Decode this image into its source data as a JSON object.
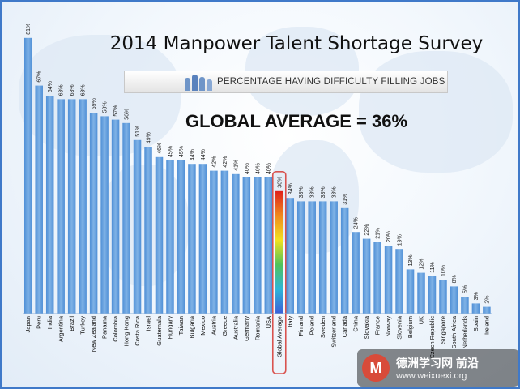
{
  "slide": {
    "title": "2014 Manpower Talent Shortage Survey",
    "subtitle": "PERCENTAGE HAVING DIFFICULTY FILLING JOBS",
    "headline": "GLOBAL AVERAGE = 36%",
    "watermark": {
      "logo": "M",
      "line1": "德洲学习网 前沿",
      "line2": "www.weixuexi.org"
    }
  },
  "colors": {
    "bar": "#7fb2e6",
    "bar_dark": "#4f8fd6",
    "highlight_outline": "#d9534f",
    "border": "#3f79c9"
  },
  "chart_data": {
    "type": "bar",
    "title": "2014 Manpower Talent Shortage Survey",
    "categories": [
      "Japan",
      "Peru",
      "India",
      "Argentina",
      "Brazil",
      "Turkey",
      "New Zealand",
      "Panama",
      "Colombia",
      "Hong Kong",
      "Costa Rica",
      "Israel",
      "Guatemala",
      "Hungary",
      "Taiwan",
      "Bulgaria",
      "Mexico",
      "Austria",
      "Greece",
      "Australia",
      "Germany",
      "Romania",
      "USA",
      "Global Average",
      "Italy",
      "Finland",
      "Poland",
      "Sweden",
      "Switzerland",
      "Canada",
      "China",
      "Slovakia",
      "France",
      "Norway",
      "Slovenia",
      "Belgium",
      "UK",
      "Czech Republic",
      "Singapore",
      "South Africa",
      "Netherlands",
      "Spain",
      "Ireland"
    ],
    "values": [
      81,
      67,
      64,
      63,
      63,
      63,
      59,
      58,
      57,
      56,
      51,
      49,
      46,
      45,
      45,
      44,
      44,
      42,
      42,
      41,
      40,
      40,
      40,
      36,
      34,
      33,
      33,
      33,
      33,
      31,
      24,
      22,
      21,
      20,
      19,
      13,
      12,
      11,
      10,
      8,
      5,
      3,
      2
    ],
    "value_labels": [
      "81%",
      "67%",
      "64%",
      "63%",
      "63%",
      "63%",
      "59%",
      "58%",
      "57%",
      "56%",
      "51%",
      "49%",
      "46%",
      "45%",
      "45%",
      "44%",
      "44%",
      "42%",
      "42%",
      "41%",
      "40%",
      "40%",
      "40%",
      "36%",
      "34%",
      "33%",
      "33%",
      "33%",
      "33%",
      "31%",
      "24%",
      "22%",
      "21%",
      "20%",
      "19%",
      "13%",
      "12%",
      "11%",
      "10%",
      "8%",
      "5%",
      "3%",
      "2%"
    ],
    "highlight": "Global Average",
    "ylim": [
      0,
      81
    ]
  }
}
